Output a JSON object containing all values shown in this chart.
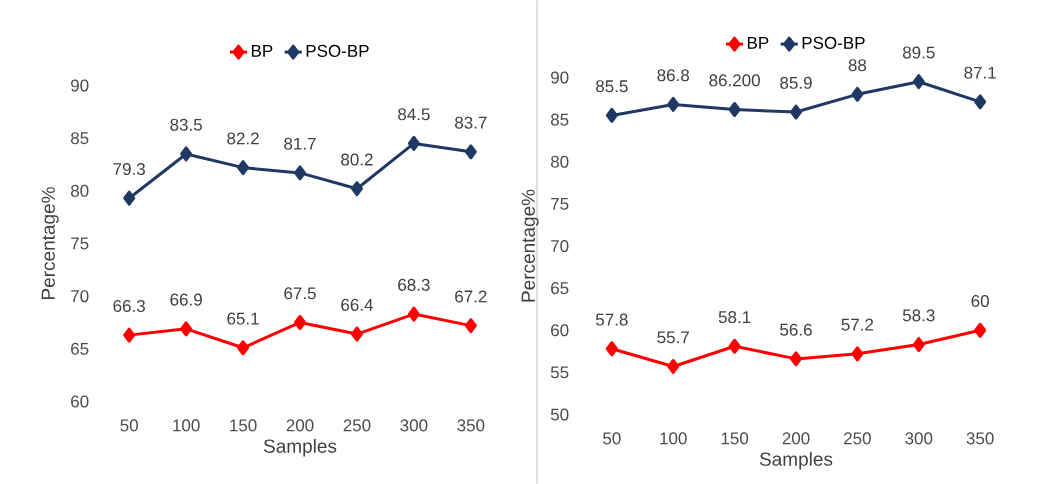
{
  "chart_data": [
    {
      "type": "line",
      "categories": [
        "50",
        "100",
        "150",
        "200",
        "250",
        "300",
        "350"
      ],
      "xlabel": "Samples",
      "ylabel": "Percentage%",
      "ylim": [
        60,
        90
      ],
      "yticks": [
        60,
        65,
        70,
        75,
        80,
        85,
        90
      ],
      "legend": "top",
      "marker": "diamond",
      "series": [
        {
          "name": "BP",
          "color": "#ff0000",
          "values": [
            66.3,
            66.9,
            65.1,
            67.5,
            66.4,
            68.3,
            67.2
          ],
          "value_labels": [
            "66.3",
            "66.9",
            "65.1",
            "67.5",
            "66.4",
            "68.3",
            "67.2"
          ]
        },
        {
          "name": "PSO-BP",
          "color": "#203864",
          "values": [
            79.3,
            83.5,
            82.2,
            81.7,
            80.2,
            84.5,
            83.7
          ],
          "value_labels": [
            "79.3",
            "83.5",
            "82.2",
            "81.7",
            "80.2",
            "84.5",
            "83.7"
          ]
        }
      ]
    },
    {
      "type": "line",
      "categories": [
        "50",
        "100",
        "150",
        "200",
        "250",
        "300",
        "350"
      ],
      "xlabel": "Samples",
      "ylabel": "Percentage%",
      "ylim": [
        50,
        90
      ],
      "yticks": [
        50,
        55,
        60,
        65,
        70,
        75,
        80,
        85,
        90
      ],
      "legend": "top",
      "marker": "diamond",
      "series": [
        {
          "name": "BP",
          "color": "#ff0000",
          "values": [
            57.8,
            55.7,
            58.1,
            56.6,
            57.2,
            58.3,
            60
          ],
          "value_labels": [
            "57.8",
            "55.7",
            "58.1",
            "56.6",
            "57.2",
            "58.3",
            "60"
          ]
        },
        {
          "name": "PSO-BP",
          "color": "#203864",
          "values": [
            85.5,
            86.8,
            86.2,
            85.9,
            88,
            89.5,
            87.1
          ],
          "value_labels": [
            "85.5",
            "86.8",
            "86.200",
            "85.9",
            "88",
            "89.5",
            "87.1"
          ]
        }
      ]
    }
  ]
}
